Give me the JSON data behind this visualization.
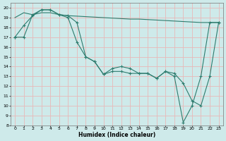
{
  "line1_x": [
    0,
    1,
    2,
    3,
    4,
    5,
    6,
    7,
    8,
    9,
    10,
    11,
    12,
    13,
    14,
    15,
    16,
    17,
    18,
    19,
    20,
    21,
    22,
    23
  ],
  "line1_y": [
    19.0,
    19.5,
    19.3,
    19.5,
    19.5,
    19.3,
    19.2,
    19.15,
    19.1,
    19.05,
    19.0,
    18.95,
    18.9,
    18.85,
    18.85,
    18.8,
    18.75,
    18.7,
    18.65,
    18.6,
    18.55,
    18.5,
    18.5,
    18.5
  ],
  "line2_x": [
    0,
    1,
    2,
    3,
    4,
    5,
    6,
    7,
    8,
    9,
    10,
    11,
    12,
    13,
    14,
    15,
    16,
    17,
    18,
    19,
    20,
    21,
    22,
    23
  ],
  "line2_y": [
    17.0,
    18.2,
    19.2,
    19.8,
    19.8,
    19.3,
    19.2,
    18.5,
    15.0,
    14.5,
    13.2,
    13.8,
    14.0,
    13.8,
    13.3,
    13.3,
    12.8,
    13.5,
    13.3,
    12.3,
    10.5,
    10.0,
    13.0,
    18.5
  ],
  "line3_x": [
    0,
    1,
    2,
    3,
    4,
    5,
    6,
    7,
    8,
    9,
    10,
    11,
    12,
    13,
    14,
    15,
    16,
    17,
    18,
    19,
    20,
    21,
    22,
    23
  ],
  "line3_y": [
    17.0,
    17.0,
    19.3,
    19.8,
    19.8,
    19.3,
    19.0,
    16.5,
    15.0,
    14.5,
    13.2,
    13.5,
    13.5,
    13.3,
    13.3,
    13.3,
    12.8,
    13.5,
    13.0,
    8.3,
    10.0,
    13.0,
    18.5,
    18.5
  ],
  "color": "#2d7c6e",
  "bg_color": "#ceeaea",
  "grid_color": "#e8b8b8",
  "xlabel": "Humidex (Indice chaleur)",
  "xlim": [
    -0.5,
    23.5
  ],
  "ylim": [
    8,
    20.5
  ],
  "yticks": [
    8,
    9,
    10,
    11,
    12,
    13,
    14,
    15,
    16,
    17,
    18,
    19,
    20
  ],
  "xticks": [
    0,
    1,
    2,
    3,
    4,
    5,
    6,
    7,
    8,
    9,
    10,
    11,
    12,
    13,
    14,
    15,
    16,
    17,
    18,
    19,
    20,
    21,
    22,
    23
  ]
}
